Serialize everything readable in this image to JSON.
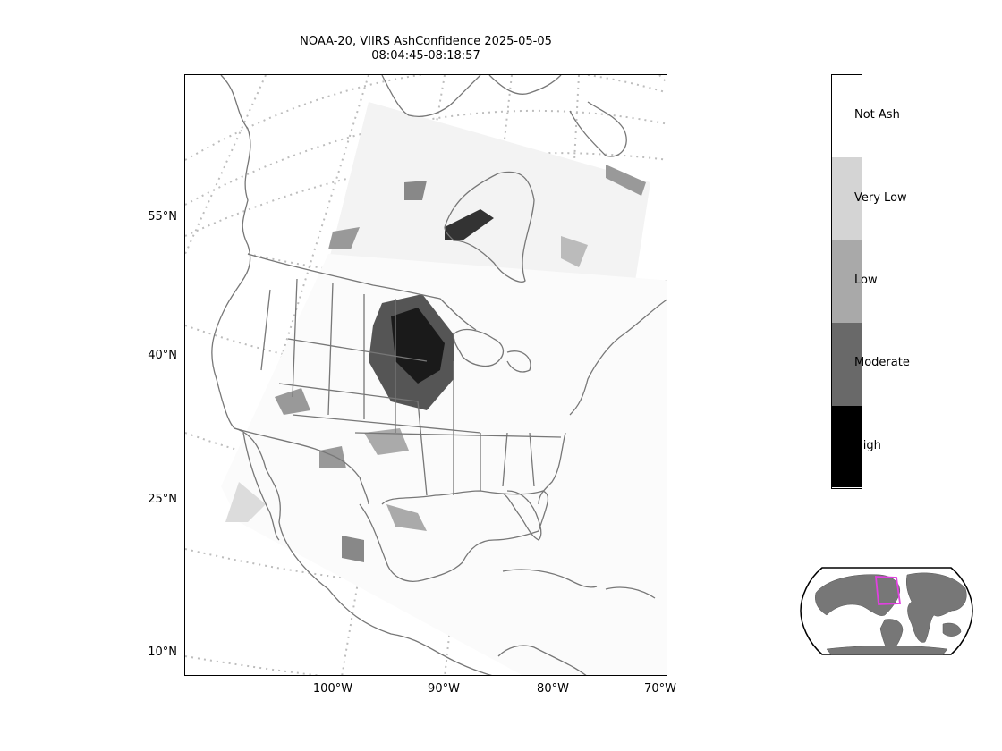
{
  "title": {
    "line1": "NOAA-20, VIIRS AshConfidence 2025-05-05",
    "line2": "08:04:45-08:18:57"
  },
  "lat_labels": [
    "55°N",
    "40°N",
    "25°N",
    "10°N"
  ],
  "lon_labels": [
    "100°W",
    "90°W",
    "80°W",
    "70°W"
  ],
  "colorbar": {
    "categories": [
      {
        "label": "Not Ash",
        "color": "#ffffff"
      },
      {
        "label": "Very Low",
        "color": "#d4d4d4"
      },
      {
        "label": "Low",
        "color": "#a9a9a9"
      },
      {
        "label": "Moderate",
        "color": "#696969"
      },
      {
        "label": "High",
        "color": "#000000"
      }
    ]
  },
  "colors": {
    "coastline": "#777777",
    "graticule": "#bdbdbd",
    "inset_land": "#777777",
    "inset_box": "#e040e0"
  }
}
